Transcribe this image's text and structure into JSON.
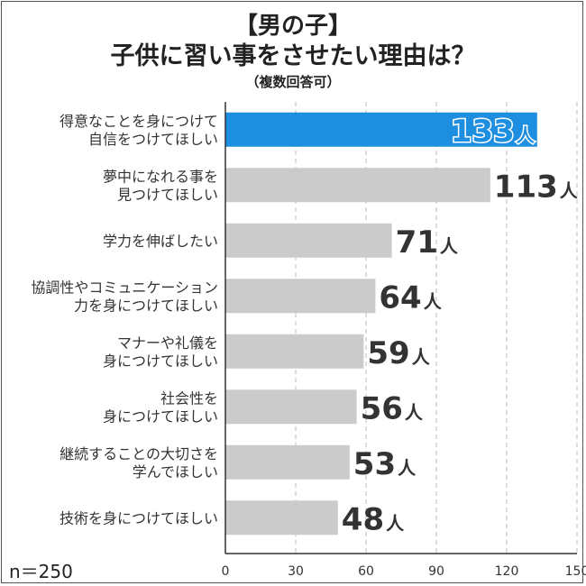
{
  "title": {
    "line1": "【男の子】",
    "line2": "子供に習い事をさせたい理由は？",
    "line3": "（複数回答可）"
  },
  "sample": "n＝250",
  "unit": "人",
  "colors": {
    "highlight": "#1e8ee0",
    "bar": "#cbcbcb",
    "text": "#333333"
  },
  "chart_data": {
    "type": "bar",
    "orientation": "horizontal",
    "categories": [
      [
        "得意なことを身につけて",
        "自信をつけてほしい"
      ],
      [
        "夢中になれる事を",
        "見つけてほしい"
      ],
      [
        "学力を伸ばしたい"
      ],
      [
        "協調性やコミュニケーション",
        "力を身につけてほしい"
      ],
      [
        "マナーや礼儀を",
        "身につけてほしい"
      ],
      [
        "社会性を",
        "身につけてほしい"
      ],
      [
        "継続することの大切さを",
        "学んでほしい"
      ],
      [
        "技術を身につけてほしい"
      ]
    ],
    "values": [
      133,
      113,
      71,
      64,
      59,
      56,
      53,
      48
    ],
    "xlim": [
      0,
      150
    ],
    "ticks": [
      0,
      30,
      60,
      90,
      120,
      150
    ],
    "grid": true,
    "highlight_index": 0
  }
}
